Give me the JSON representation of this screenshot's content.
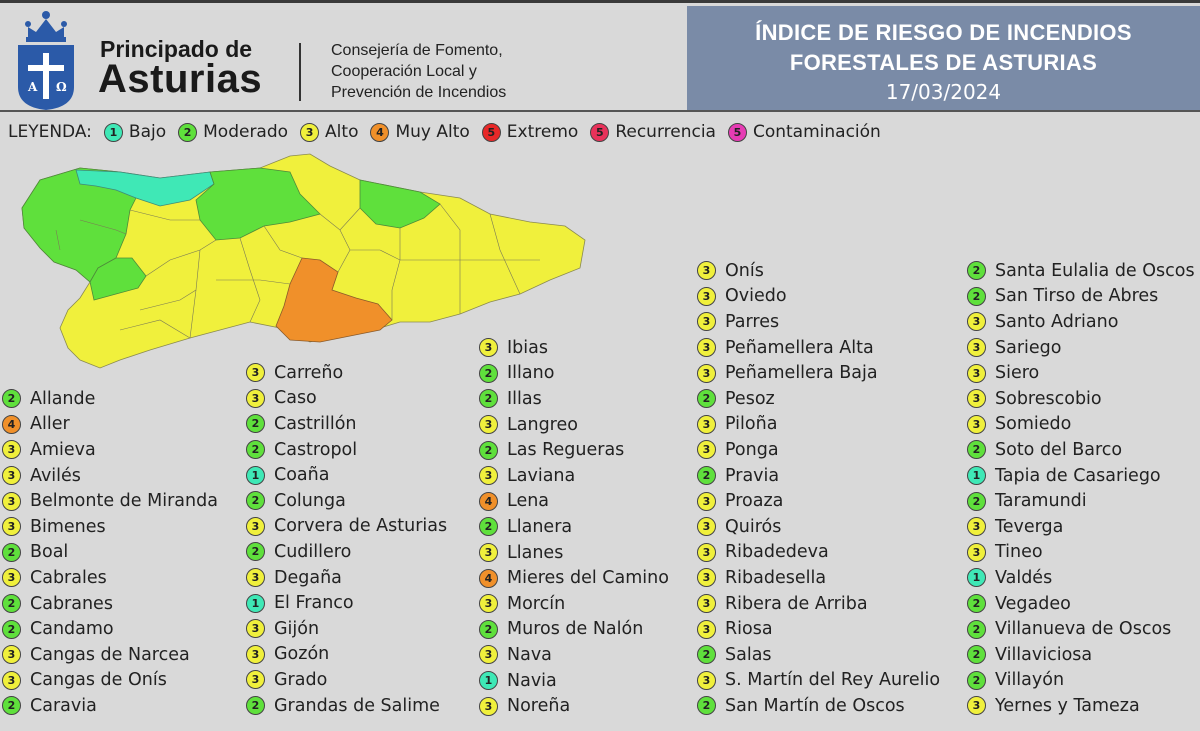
{
  "header": {
    "brand_line1": "Principado de",
    "brand_line2": "Asturias",
    "dept": [
      "Consejería de Fomento,",
      "Cooperación Local y",
      "Prevención de Incendios"
    ],
    "title_line1": "ÍNDICE DE RIESGO DE INCENDIOS",
    "title_line2": "FORESTALES DE ASTURIAS",
    "date": "17/03/2024"
  },
  "colors": {
    "1": "#3fe8b6",
    "2": "#5fe03c",
    "3": "#f0f03c",
    "4": "#f0902a",
    "5e": "#e82828",
    "5r": "#e8325a",
    "5c": "#e63cb4",
    "title_bg": "#7a8ba7",
    "page_bg": "#d9d9d9"
  },
  "legend": {
    "title": "LEYENDA:",
    "items": [
      {
        "num": "1",
        "label": "Bajo",
        "color": "#3fe8b6"
      },
      {
        "num": "2",
        "label": "Moderado",
        "color": "#5fe03c"
      },
      {
        "num": "3",
        "label": "Alto",
        "color": "#f0f03c"
      },
      {
        "num": "4",
        "label": "Muy Alto",
        "color": "#f0902a"
      },
      {
        "num": "5",
        "label": "Extremo",
        "color": "#e82828"
      },
      {
        "num": "5",
        "label": "Recurrencia",
        "color": "#e8325a"
      },
      {
        "num": "5",
        "label": "Contaminación",
        "color": "#e63cb4"
      }
    ]
  },
  "columns": [
    [
      {
        "level": "2",
        "name": "Allande"
      },
      {
        "level": "4",
        "name": "Aller"
      },
      {
        "level": "3",
        "name": "Amieva"
      },
      {
        "level": "3",
        "name": "Avilés"
      },
      {
        "level": "3",
        "name": "Belmonte de Miranda"
      },
      {
        "level": "3",
        "name": "Bimenes"
      },
      {
        "level": "2",
        "name": "Boal"
      },
      {
        "level": "3",
        "name": "Cabrales"
      },
      {
        "level": "2",
        "name": "Cabranes"
      },
      {
        "level": "2",
        "name": "Candamo"
      },
      {
        "level": "3",
        "name": "Cangas de Narcea"
      },
      {
        "level": "3",
        "name": "Cangas de Onís"
      },
      {
        "level": "2",
        "name": "Caravia"
      }
    ],
    [
      {
        "level": "3",
        "name": "Carreño"
      },
      {
        "level": "3",
        "name": "Caso"
      },
      {
        "level": "2",
        "name": "Castrillón"
      },
      {
        "level": "2",
        "name": "Castropol"
      },
      {
        "level": "1",
        "name": "Coaña"
      },
      {
        "level": "2",
        "name": "Colunga"
      },
      {
        "level": "3",
        "name": "Corvera de Asturias"
      },
      {
        "level": "2",
        "name": "Cudillero"
      },
      {
        "level": "3",
        "name": "Degaña"
      },
      {
        "level": "1",
        "name": "El Franco"
      },
      {
        "level": "3",
        "name": "Gijón"
      },
      {
        "level": "3",
        "name": "Gozón"
      },
      {
        "level": "3",
        "name": "Grado"
      },
      {
        "level": "2",
        "name": "Grandas de Salime"
      }
    ],
    [
      {
        "level": "3",
        "name": "Ibias"
      },
      {
        "level": "2",
        "name": "Illano"
      },
      {
        "level": "2",
        "name": "Illas"
      },
      {
        "level": "3",
        "name": "Langreo"
      },
      {
        "level": "2",
        "name": "Las Regueras"
      },
      {
        "level": "3",
        "name": "Laviana"
      },
      {
        "level": "4",
        "name": "Lena"
      },
      {
        "level": "2",
        "name": "Llanera"
      },
      {
        "level": "3",
        "name": "Llanes"
      },
      {
        "level": "4",
        "name": "Mieres del Camino"
      },
      {
        "level": "3",
        "name": "Morcín"
      },
      {
        "level": "2",
        "name": "Muros de Nalón"
      },
      {
        "level": "3",
        "name": "Nava"
      },
      {
        "level": "1",
        "name": "Navia"
      },
      {
        "level": "3",
        "name": "Noreña"
      }
    ],
    [
      {
        "level": "3",
        "name": "Onís"
      },
      {
        "level": "3",
        "name": "Oviedo"
      },
      {
        "level": "3",
        "name": "Parres"
      },
      {
        "level": "3",
        "name": "Peñamellera Alta"
      },
      {
        "level": "3",
        "name": "Peñamellera Baja"
      },
      {
        "level": "2",
        "name": "Pesoz"
      },
      {
        "level": "3",
        "name": "Piloña"
      },
      {
        "level": "3",
        "name": "Ponga"
      },
      {
        "level": "2",
        "name": "Pravia"
      },
      {
        "level": "3",
        "name": "Proaza"
      },
      {
        "level": "3",
        "name": "Quirós"
      },
      {
        "level": "3",
        "name": "Ribadedeva"
      },
      {
        "level": "3",
        "name": "Ribadesella"
      },
      {
        "level": "3",
        "name": "Ribera de Arriba"
      },
      {
        "level": "3",
        "name": "Riosa"
      },
      {
        "level": "2",
        "name": "Salas"
      },
      {
        "level": "3",
        "name": "S. Martín del Rey Aurelio"
      },
      {
        "level": "2",
        "name": "San Martín de Oscos"
      }
    ],
    [
      {
        "level": "2",
        "name": "Santa Eulalia de Oscos"
      },
      {
        "level": "2",
        "name": "San Tirso de Abres"
      },
      {
        "level": "3",
        "name": "Santo Adriano"
      },
      {
        "level": "3",
        "name": "Sariego"
      },
      {
        "level": "3",
        "name": "Siero"
      },
      {
        "level": "3",
        "name": "Sobrescobio"
      },
      {
        "level": "3",
        "name": "Somiedo"
      },
      {
        "level": "2",
        "name": "Soto del Barco"
      },
      {
        "level": "1",
        "name": "Tapia de Casariego"
      },
      {
        "level": "2",
        "name": "Taramundi"
      },
      {
        "level": "3",
        "name": "Teverga"
      },
      {
        "level": "3",
        "name": "Tineo"
      },
      {
        "level": "1",
        "name": "Valdés"
      },
      {
        "level": "2",
        "name": "Vegadeo"
      },
      {
        "level": "2",
        "name": "Villanueva de Oscos"
      },
      {
        "level": "2",
        "name": "Villaviciosa"
      },
      {
        "level": "2",
        "name": "Villayón"
      },
      {
        "level": "3",
        "name": "Yernes y Tameza"
      }
    ]
  ]
}
